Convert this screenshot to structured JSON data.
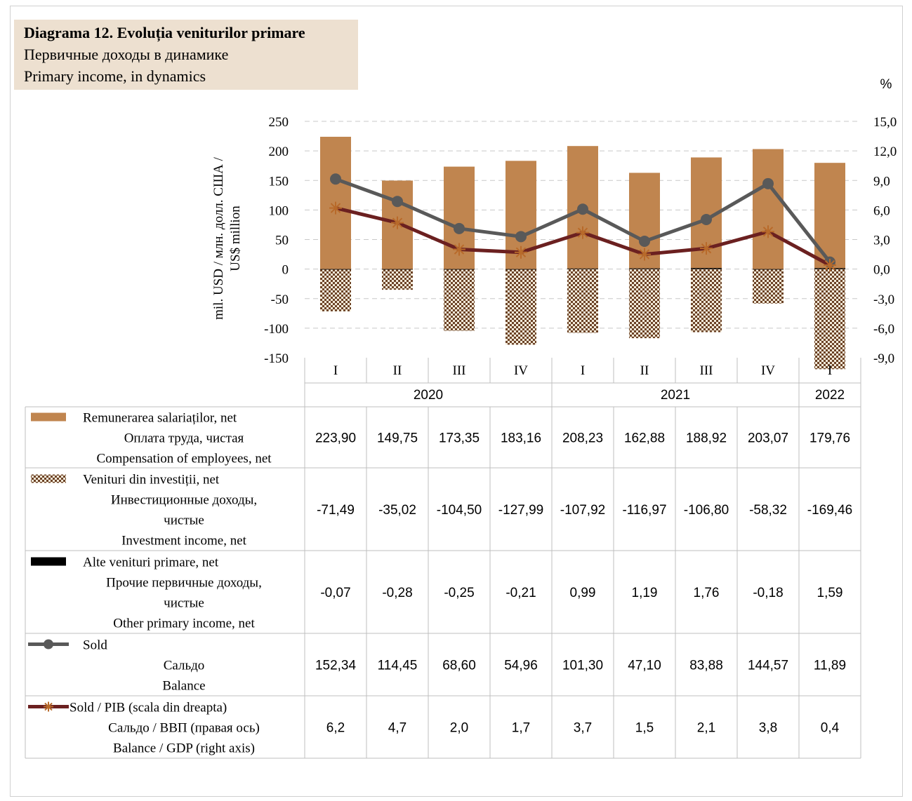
{
  "title": {
    "line1": "Diagrama 12. Evoluția veniturilor primare",
    "line2": "Первичные доходы в динамике",
    "line3": "Primary income, in dynamics"
  },
  "chart_data": {
    "type": "bar",
    "y_axis_label": [
      "mil. USD / млн. долл. США /",
      "US$ million"
    ],
    "y2_axis_label": "%",
    "ylim": [
      -150,
      250
    ],
    "y_ticks": [
      "250",
      "200",
      "150",
      "100",
      "50",
      "0",
      "-50",
      "-100",
      "-150"
    ],
    "y2lim": [
      -9,
      15
    ],
    "y2_ticks": [
      "15,0",
      "12,0",
      "9,0",
      "6,0",
      "3,0",
      "0,0",
      "-3,0",
      "-6,0",
      "-9,0"
    ],
    "categories": [
      "I",
      "II",
      "III",
      "IV",
      "I",
      "II",
      "III",
      "IV",
      "I"
    ],
    "years": [
      {
        "label": "2020",
        "span": 4
      },
      {
        "label": "2021",
        "span": 4
      },
      {
        "label": "2022",
        "span": 1
      }
    ],
    "grid": true,
    "series": [
      {
        "name": "Remunerarea salariaților, net",
        "name_ru": "Оплата труда, чистая",
        "name_en": "Compensation of employees, net",
        "kind": "bar",
        "pattern": "solid",
        "color": "#c0854f",
        "values": [
          223.9,
          149.75,
          173.35,
          183.16,
          208.23,
          162.88,
          188.92,
          203.07,
          179.76
        ],
        "labels": [
          "223,90",
          "149,75",
          "173,35",
          "183,16",
          "208,23",
          "162,88",
          "188,92",
          "203,07",
          "179,76"
        ]
      },
      {
        "name": "Venituri din investiții, net",
        "name_ru_1": "Инвестиционные доходы,",
        "name_ru_2": "чистые",
        "name_en": "Investment income, net",
        "kind": "bar",
        "pattern": "checker",
        "color": "#6b4226",
        "values": [
          -71.49,
          -35.02,
          -104.5,
          -127.99,
          -107.92,
          -116.97,
          -106.8,
          -58.32,
          -169.46
        ],
        "labels": [
          "-71,49",
          "-35,02",
          "-104,50",
          "-127,99",
          "-107,92",
          "-116,97",
          "-106,80",
          "-58,32",
          "-169,46"
        ]
      },
      {
        "name": "Alte venituri primare, net",
        "name_ru_1": "Прочие первичные доходы,",
        "name_ru_2": "чистые",
        "name_en": "Other primary income, net",
        "kind": "bar",
        "pattern": "solid",
        "color": "#000000",
        "values": [
          -0.07,
          -0.28,
          -0.25,
          -0.21,
          0.99,
          1.19,
          1.76,
          -0.18,
          1.59
        ],
        "labels": [
          "-0,07",
          "-0,28",
          "-0,25",
          "-0,21",
          "0,99",
          "1,19",
          "1,76",
          "-0,18",
          "1,59"
        ]
      },
      {
        "name": "Sold",
        "name_ru": "Сальдо",
        "name_en": "Balance",
        "kind": "line",
        "marker": "circle",
        "color": "#595959",
        "values": [
          152.34,
          114.45,
          68.6,
          54.96,
          101.3,
          47.1,
          83.88,
          144.57,
          11.89
        ],
        "labels": [
          "152,34",
          "114,45",
          "68,60",
          "54,96",
          "101,30",
          "47,10",
          "83,88",
          "144,57",
          "11,89"
        ]
      },
      {
        "name": "Sold / PIB (scala din dreapta)",
        "name_ru": "Сальдо / ВВП (правая ось)",
        "name_en": "Balance / GDP (right axis)",
        "kind": "line",
        "marker": "star",
        "axis": "right",
        "color": "#6b2020",
        "values": [
          6.2,
          4.7,
          2.0,
          1.7,
          3.7,
          1.5,
          2.1,
          3.8,
          0.4
        ],
        "labels": [
          "6,2",
          "4,7",
          "2,0",
          "1,7",
          "3,7",
          "1,5",
          "2,1",
          "3,8",
          "0,4"
        ]
      }
    ]
  }
}
